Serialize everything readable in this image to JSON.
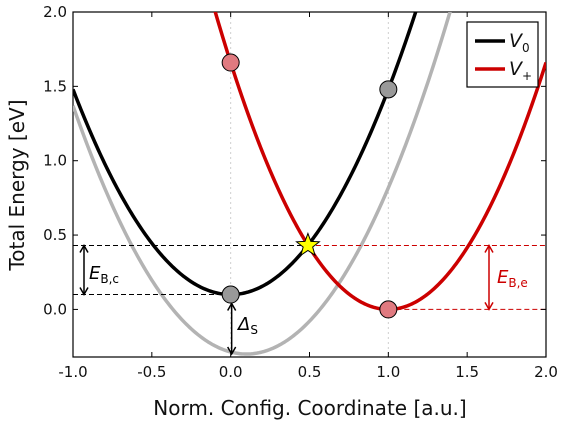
{
  "chart_data": {
    "type": "line",
    "xlabel": "Norm. Config. Coordinate [a.u.]",
    "ylabel": "Total Energy [eV]",
    "xlim": [
      -1.0,
      2.0
    ],
    "ylim": [
      -0.32,
      2.0
    ],
    "xticks": [
      "-1.0",
      "-0.5",
      "0.0",
      "0.5",
      "1.0",
      "1.5",
      "2.0"
    ],
    "yticks": [
      "0.0",
      "0.5",
      "1.0",
      "1.5",
      "2.0"
    ],
    "grid": false,
    "legend_position": "top-right",
    "legend": [
      {
        "main": "V",
        "sub": "0",
        "color": "#000000"
      },
      {
        "main": "V",
        "sub": "+",
        "color": "#cc0000"
      }
    ],
    "series": [
      {
        "name": "V0",
        "color": "#000000",
        "curve": "parabola",
        "center_q": 0.0,
        "min_E": 0.1,
        "curvature": 1.38
      },
      {
        "name": "V+",
        "color": "#cc0000",
        "curve": "parabola",
        "center_q": 1.0,
        "min_E": 0.0,
        "curvature": 1.66
      },
      {
        "name": "",
        "color": "#b3b3b3",
        "curve": "parabola",
        "center_q": 0.0,
        "min_E": -0.3,
        "curvature": 1.38,
        "center_shift_q": 0.1
      }
    ],
    "markers": [
      {
        "q": 0.0,
        "E": 0.1,
        "color": "#999999",
        "shape": "circle"
      },
      {
        "q": 1.0,
        "E": 1.48,
        "color": "#999999",
        "shape": "circle"
      },
      {
        "q": 0.0,
        "E": 1.66,
        "color": "#e07a80",
        "shape": "circle"
      },
      {
        "q": 1.0,
        "E": 0.0,
        "color": "#e07a80",
        "shape": "circle"
      },
      {
        "q": 0.49,
        "E": 0.43,
        "color": "#ffff00",
        "shape": "star"
      }
    ],
    "reference_lines": {
      "vertical_q": [
        0.0,
        1.0
      ],
      "horizontal_black": [
        {
          "E": 0.43,
          "q_from": -1.0,
          "q_to": 0.49
        },
        {
          "E": 0.1,
          "q_from": -1.0,
          "q_to": 0.0
        }
      ],
      "horizontal_red": [
        {
          "E": 0.43,
          "q_from": 0.49,
          "q_to": 2.0
        },
        {
          "E": 0.0,
          "q_from": 1.0,
          "q_to": 2.0
        }
      ]
    },
    "annotations": [
      {
        "main": "E",
        "sub": "B,c",
        "color": "#000000"
      },
      {
        "main": "Δ",
        "sub": "S",
        "color": "#000000"
      },
      {
        "main": "E",
        "sub": "B,e",
        "color": "#cc0000"
      }
    ]
  }
}
